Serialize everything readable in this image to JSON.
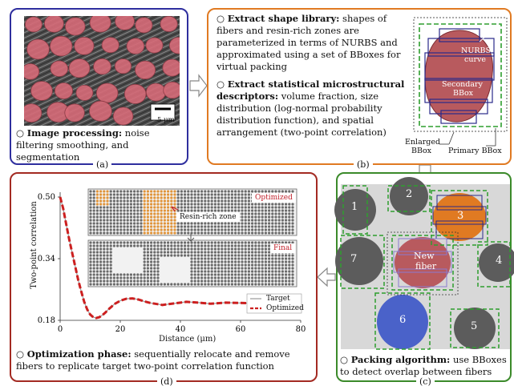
{
  "colors": {
    "blue_border": "#2e2e9e",
    "orange_border": "#e07a22",
    "red_border": "#a32a22",
    "green_border": "#3b8a2a",
    "fiber_red": "#b85a5e",
    "fiber_orange": "#e07a22",
    "fiber_blue": "#4a62c9",
    "fiber_gray": "#5c5c5c"
  },
  "panel_a": {
    "caption": "(a)",
    "title": "Image processing:",
    "body": "noise filtering smoothing, and segmentation",
    "scale_bar": "5 μm"
  },
  "panel_b": {
    "caption": "(b)",
    "item1_title": "Extract shape library:",
    "item1_body": "shapes of fibers and resin-rich zones are parameterized in terms of NURBS and approximated using a set of BBoxes for virtual packing",
    "item2_title": "Extract statistical microstructural descriptors:",
    "item2_body": "volume fraction, size distribution (log-normal probability distribution function), and spatial arrangement (two-point correlation)",
    "labels": {
      "nurbs": "NURBS",
      "curve": "curve",
      "secondary": "Secondary",
      "bbox": "BBox",
      "enlarged": "Enlarged",
      "enlarged_bbox": "BBox",
      "primary": "Primary BBox"
    }
  },
  "panel_c": {
    "caption": "(c)",
    "title": "Packing algorithm:",
    "body": "use BBoxes to detect overlap between fibers",
    "fiber_labels": [
      "1",
      "2",
      "3",
      "4",
      "5",
      "6",
      "7"
    ],
    "new_fiber_line1": "New",
    "new_fiber_line2": "fiber"
  },
  "panel_d": {
    "caption": "(d)",
    "title": "Optimization phase:",
    "body": "sequentially relocate and remove fibers to replicate target two-point correlation function",
    "label_optimized": "Optimized",
    "label_final": "Final",
    "label_resin": "Resin-rich zone"
  },
  "chart_data": {
    "type": "line",
    "xlabel": "Distance (μm)",
    "ylabel": "Two-point correlation",
    "xlim": [
      0,
      80
    ],
    "ylim": [
      0.18,
      0.5
    ],
    "xticks": [
      0,
      20,
      40,
      60,
      80
    ],
    "yticks": [
      0.18,
      0.34,
      0.5
    ],
    "ytick_labels": [
      "0.18",
      "0.34",
      "0.50"
    ],
    "legend_position": "bottom-right",
    "series": [
      {
        "name": "Target",
        "color": "#999999",
        "x": [
          0,
          1,
          2,
          3,
          4,
          5,
          6,
          7,
          8,
          9,
          10,
          11,
          12,
          13,
          14,
          15,
          16,
          17,
          18,
          20,
          22,
          24,
          26,
          28,
          30,
          34,
          38,
          42,
          46,
          50,
          55,
          60,
          65,
          70,
          75,
          80
        ],
        "y": [
          0.5,
          0.47,
          0.43,
          0.39,
          0.355,
          0.32,
          0.285,
          0.255,
          0.228,
          0.208,
          0.195,
          0.188,
          0.186,
          0.188,
          0.193,
          0.2,
          0.208,
          0.215,
          0.222,
          0.231,
          0.236,
          0.237,
          0.234,
          0.229,
          0.225,
          0.22,
          0.224,
          0.228,
          0.226,
          0.223,
          0.226,
          0.225,
          0.224,
          0.226,
          0.225,
          0.225
        ]
      },
      {
        "name": "Optimized",
        "color": "#cc1f1f",
        "x": [
          0,
          1,
          2,
          3,
          4,
          5,
          6,
          7,
          8,
          9,
          10,
          11,
          12,
          13,
          14,
          15,
          16,
          17,
          18,
          20,
          22,
          24,
          26,
          28,
          30,
          34,
          38,
          42,
          46,
          50,
          55,
          60,
          65,
          70,
          75,
          80
        ],
        "y": [
          0.5,
          0.47,
          0.43,
          0.39,
          0.355,
          0.32,
          0.285,
          0.255,
          0.228,
          0.208,
          0.195,
          0.188,
          0.186,
          0.188,
          0.193,
          0.2,
          0.208,
          0.215,
          0.222,
          0.231,
          0.236,
          0.237,
          0.234,
          0.229,
          0.225,
          0.22,
          0.224,
          0.228,
          0.226,
          0.223,
          0.226,
          0.225,
          0.224,
          0.226,
          0.225,
          0.225
        ]
      }
    ]
  }
}
